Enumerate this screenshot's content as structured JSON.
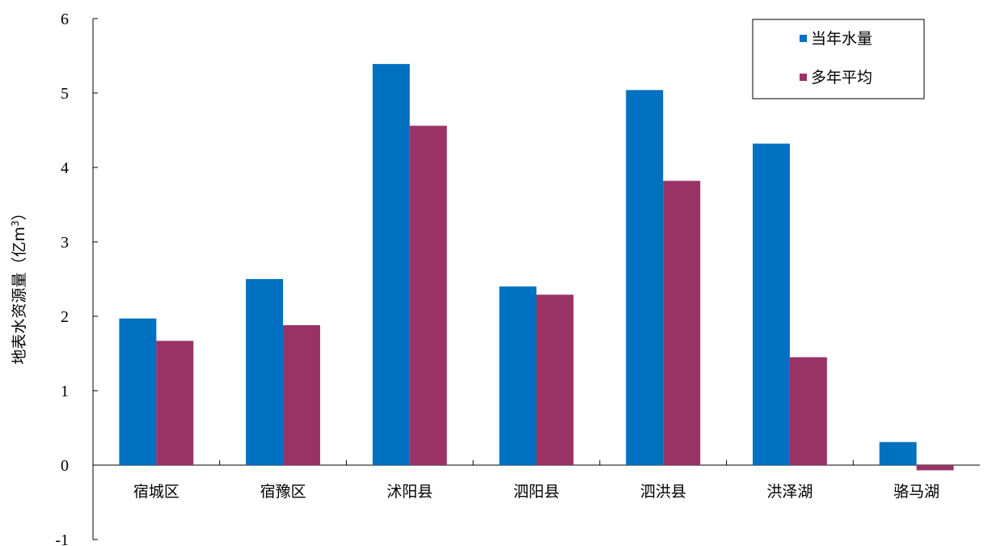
{
  "chart_data": {
    "type": "bar",
    "title": "",
    "xlabel": "",
    "ylabel": "地表水资源量（亿m",
    "ylabel_superscript": "3",
    "ylabel_close": "）",
    "categories": [
      "宿城区",
      "宿豫区",
      "沭阳县",
      "泗阳县",
      "泗洪县",
      "洪泽湖",
      "骆马湖"
    ],
    "series": [
      {
        "name": "当年水量",
        "color": "#0070C0",
        "values": [
          1.97,
          2.5,
          5.39,
          2.4,
          5.04,
          4.32,
          0.31
        ]
      },
      {
        "name": "多年平均",
        "color": "#993366",
        "values": [
          1.67,
          1.88,
          4.56,
          2.29,
          3.82,
          1.45,
          -0.07
        ]
      }
    ],
    "ylim": [
      -1,
      6
    ],
    "yticks": [
      -1,
      0,
      1,
      2,
      3,
      4,
      5,
      6
    ],
    "grid": false,
    "legend_position": "top-right"
  }
}
